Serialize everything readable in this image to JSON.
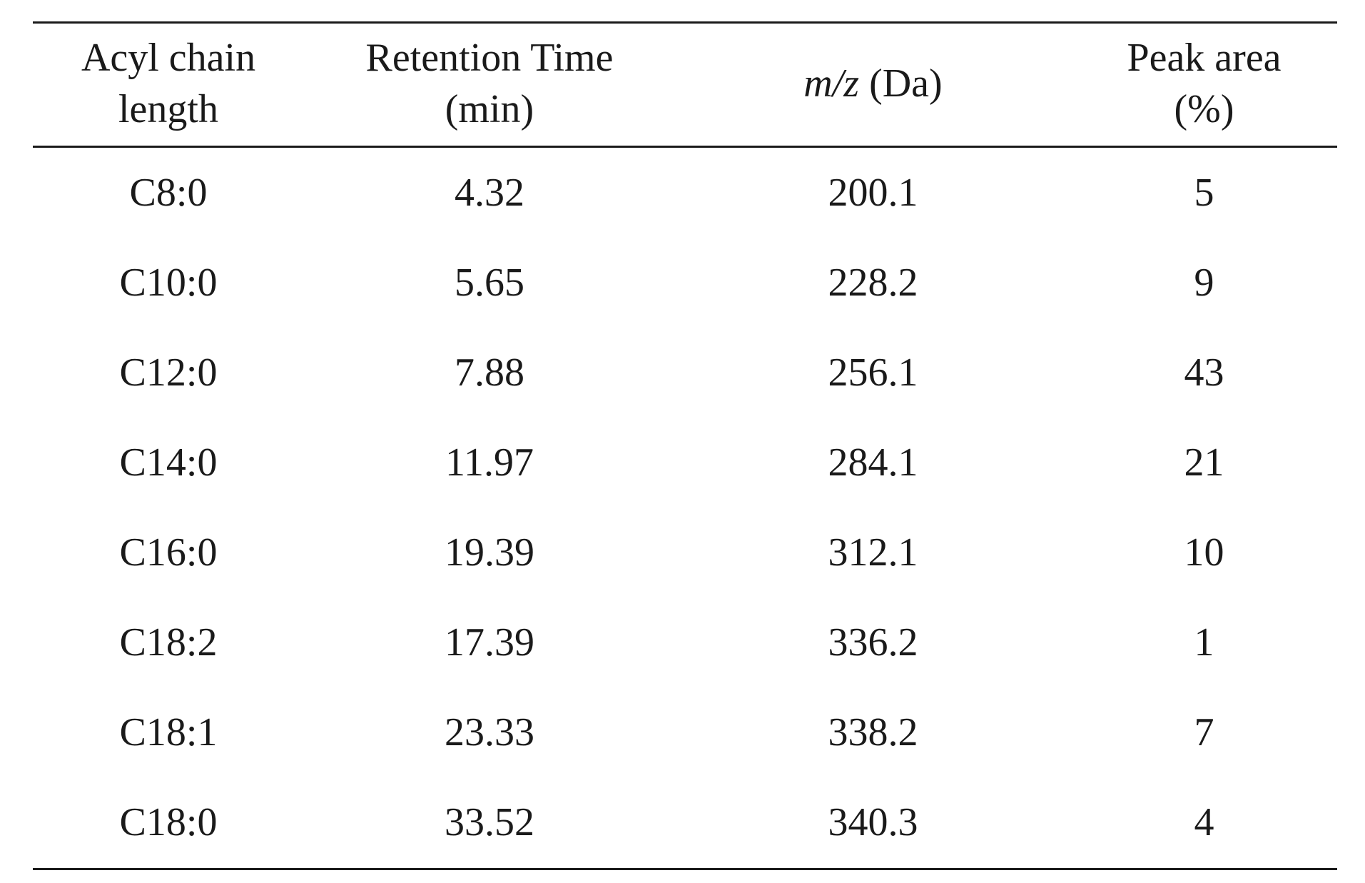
{
  "table": {
    "headers": [
      {
        "line1": "Acyl chain",
        "line2": "length"
      },
      {
        "line1": "Retention Time",
        "line2": "(min)"
      },
      {
        "italic": "m/z",
        "rest": " (Da)"
      },
      {
        "line1": "Peak area",
        "line2": "(%)"
      }
    ],
    "rows": [
      [
        "C8:0",
        "4.32",
        "200.1",
        "5"
      ],
      [
        "C10:0",
        "5.65",
        "228.2",
        "9"
      ],
      [
        "C12:0",
        "7.88",
        "256.1",
        "43"
      ],
      [
        "C14:0",
        "11.97",
        "284.1",
        "21"
      ],
      [
        "C16:0",
        "19.39",
        "312.1",
        "10"
      ],
      [
        "C18:2",
        "17.39",
        "336.2",
        "1"
      ],
      [
        "C18:1",
        "23.33",
        "338.2",
        "7"
      ],
      [
        "C18:0",
        "33.52",
        "340.3",
        "4"
      ]
    ]
  }
}
